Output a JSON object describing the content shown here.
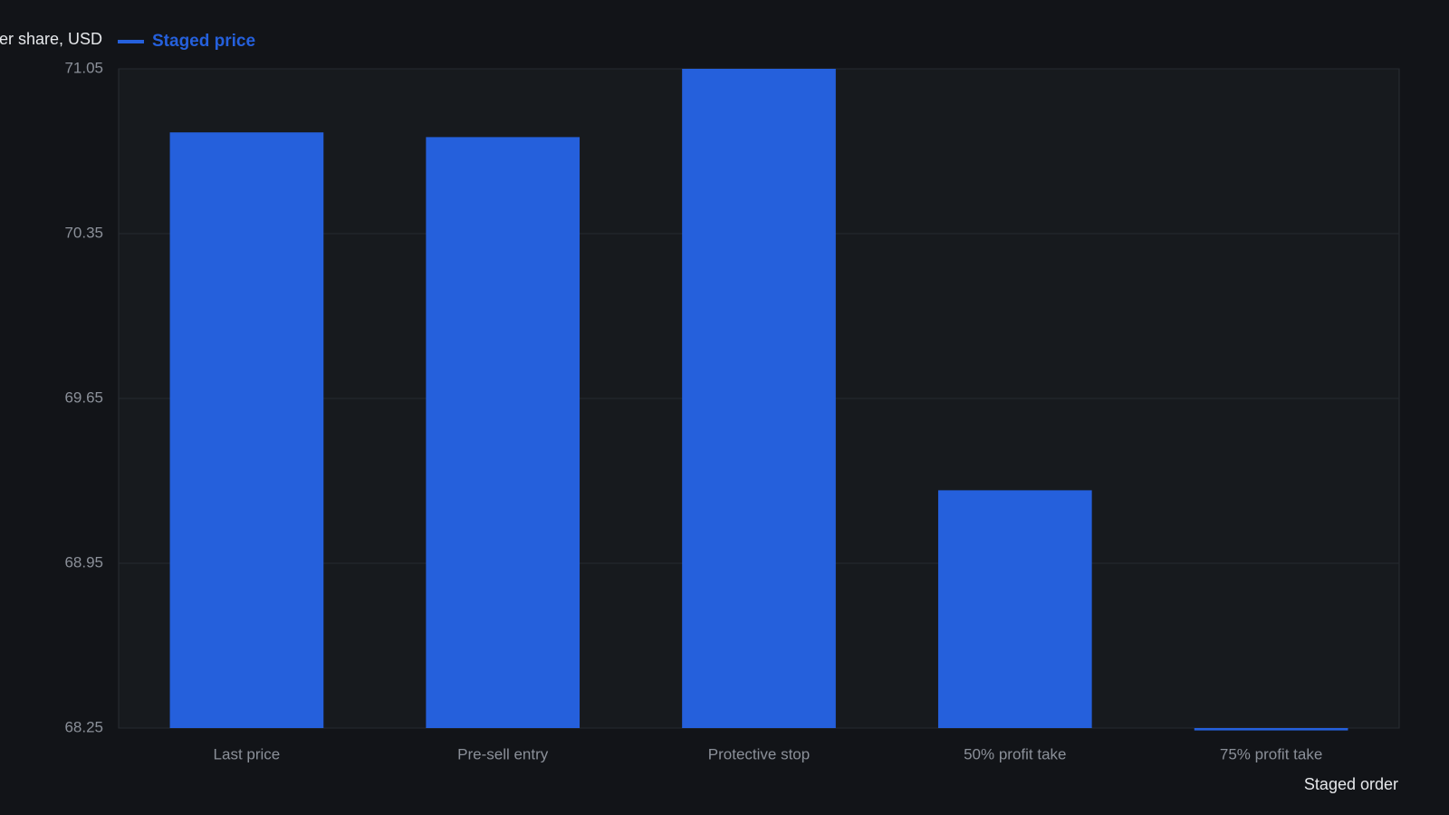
{
  "chart_data": {
    "type": "bar",
    "y_label": "Price per share, USD",
    "x_label": "Staged order",
    "series": [
      {
        "name": "Staged price",
        "color": "#2560dc",
        "values": [
          70.78,
          70.76,
          71.05,
          69.26,
          68.24
        ]
      }
    ],
    "categories": [
      "Last price",
      "Pre-sell entry",
      "Protective stop",
      "50% profit take",
      "75% profit take"
    ],
    "ylim": [
      68.25,
      71.05
    ],
    "yticks": [
      68.25,
      68.95,
      69.65,
      70.35,
      71.05
    ],
    "grid": true
  }
}
